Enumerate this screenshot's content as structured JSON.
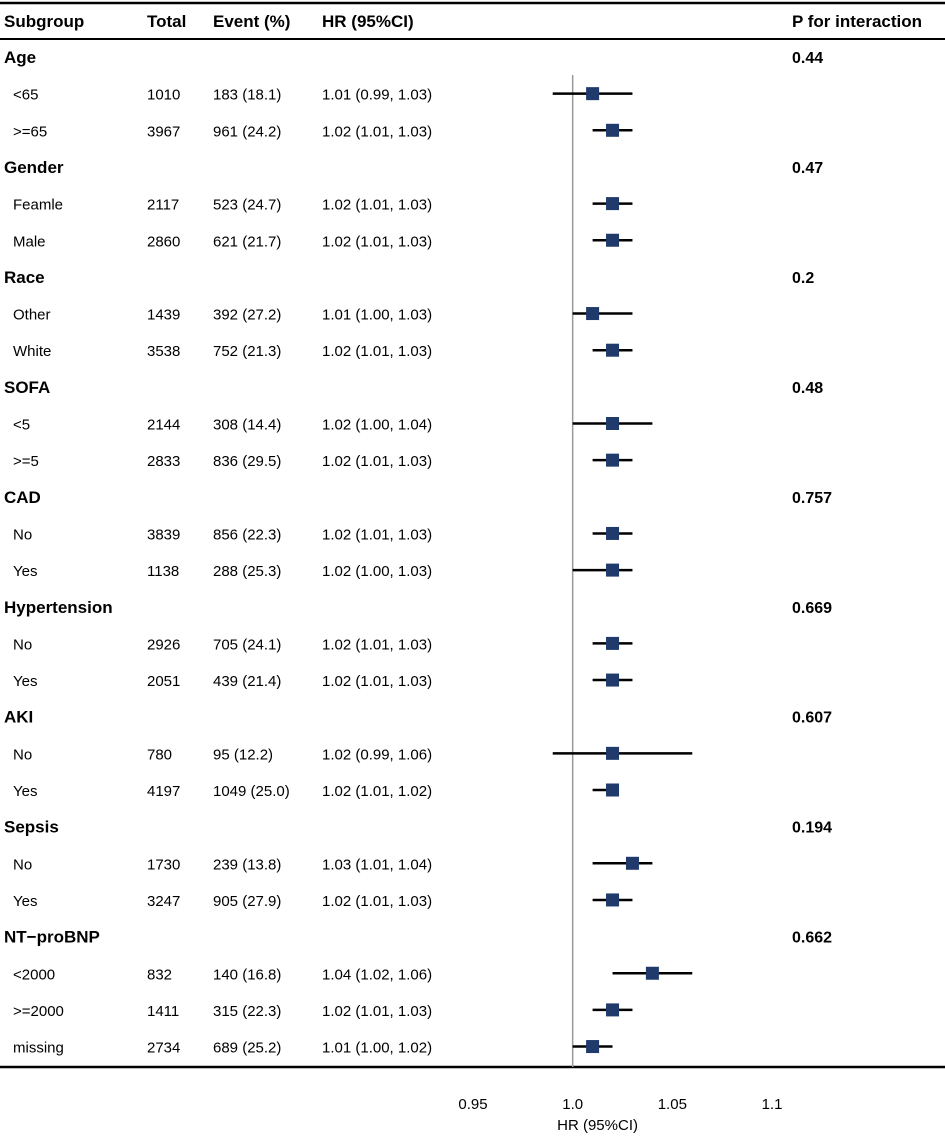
{
  "columns": {
    "subgroup": "Subgroup",
    "total": "Total",
    "event": "Event (%)",
    "hr": "HR (95%CI)",
    "p_interaction": "P for interaction"
  },
  "chart_data": {
    "type": "forest",
    "xlabel": "HR (95%CI)",
    "xlim": [
      0.95,
      1.1
    ],
    "xticks": [
      0.95,
      1.0,
      1.05,
      1.1
    ],
    "xtick_labels": [
      "0.95",
      "1.0",
      "1.05",
      "1.1"
    ],
    "reference_line": 1.0,
    "groups": [
      {
        "name": "Age",
        "p": "0.44",
        "rows": [
          {
            "label": "<65",
            "total": "1010",
            "event": "183 (18.1)",
            "hr_text": "1.01 (0.99, 1.03)",
            "hr": 1.01,
            "lo": 0.99,
            "hi": 1.03
          },
          {
            "label": ">=65",
            "total": "3967",
            "event": "961 (24.2)",
            "hr_text": "1.02 (1.01, 1.03)",
            "hr": 1.02,
            "lo": 1.01,
            "hi": 1.03
          }
        ]
      },
      {
        "name": "Gender",
        "p": "0.47",
        "rows": [
          {
            "label": "Feamle",
            "total": "2117",
            "event": "523 (24.7)",
            "hr_text": "1.02 (1.01, 1.03)",
            "hr": 1.02,
            "lo": 1.01,
            "hi": 1.03
          },
          {
            "label": "Male",
            "total": "2860",
            "event": "621 (21.7)",
            "hr_text": "1.02 (1.01, 1.03)",
            "hr": 1.02,
            "lo": 1.01,
            "hi": 1.03
          }
        ]
      },
      {
        "name": "Race",
        "p": "0.2",
        "rows": [
          {
            "label": "Other",
            "total": "1439",
            "event": "392 (27.2)",
            "hr_text": "1.01 (1.00, 1.03)",
            "hr": 1.01,
            "lo": 1.0,
            "hi": 1.03
          },
          {
            "label": "White",
            "total": "3538",
            "event": "752 (21.3)",
            "hr_text": "1.02 (1.01, 1.03)",
            "hr": 1.02,
            "lo": 1.01,
            "hi": 1.03
          }
        ]
      },
      {
        "name": "SOFA",
        "p": "0.48",
        "rows": [
          {
            "label": "<5",
            "total": "2144",
            "event": "308 (14.4)",
            "hr_text": "1.02 (1.00, 1.04)",
            "hr": 1.02,
            "lo": 1.0,
            "hi": 1.04
          },
          {
            "label": ">=5",
            "total": "2833",
            "event": "836 (29.5)",
            "hr_text": "1.02 (1.01, 1.03)",
            "hr": 1.02,
            "lo": 1.01,
            "hi": 1.03
          }
        ]
      },
      {
        "name": "CAD",
        "p": "0.757",
        "rows": [
          {
            "label": "No",
            "total": "3839",
            "event": "856 (22.3)",
            "hr_text": "1.02 (1.01, 1.03)",
            "hr": 1.02,
            "lo": 1.01,
            "hi": 1.03
          },
          {
            "label": "Yes",
            "total": "1138",
            "event": "288 (25.3)",
            "hr_text": "1.02 (1.00, 1.03)",
            "hr": 1.02,
            "lo": 1.0,
            "hi": 1.03
          }
        ]
      },
      {
        "name": "Hypertension",
        "p": "0.669",
        "rows": [
          {
            "label": "No",
            "total": "2926",
            "event": "705 (24.1)",
            "hr_text": "1.02 (1.01, 1.03)",
            "hr": 1.02,
            "lo": 1.01,
            "hi": 1.03
          },
          {
            "label": "Yes",
            "total": "2051",
            "event": "439 (21.4)",
            "hr_text": "1.02 (1.01, 1.03)",
            "hr": 1.02,
            "lo": 1.01,
            "hi": 1.03
          }
        ]
      },
      {
        "name": "AKI",
        "p": "0.607",
        "rows": [
          {
            "label": "No",
            "total": "780",
            "event": "95 (12.2)",
            "hr_text": "1.02 (0.99, 1.06)",
            "hr": 1.02,
            "lo": 0.99,
            "hi": 1.06
          },
          {
            "label": "Yes",
            "total": "4197",
            "event": "1049 (25.0)",
            "hr_text": "1.02 (1.01, 1.02)",
            "hr": 1.02,
            "lo": 1.01,
            "hi": 1.02
          }
        ]
      },
      {
        "name": "Sepsis",
        "p": "0.194",
        "rows": [
          {
            "label": "No",
            "total": "1730",
            "event": "239 (13.8)",
            "hr_text": "1.03 (1.01, 1.04)",
            "hr": 1.03,
            "lo": 1.01,
            "hi": 1.04
          },
          {
            "label": "Yes",
            "total": "3247",
            "event": "905 (27.9)",
            "hr_text": "1.02 (1.01, 1.03)",
            "hr": 1.02,
            "lo": 1.01,
            "hi": 1.03
          }
        ]
      },
      {
        "name": "NT−proBNP",
        "p": "0.662",
        "rows": [
          {
            "label": "<2000",
            "total": "832",
            "event": "140 (16.8)",
            "hr_text": "1.04 (1.02, 1.06)",
            "hr": 1.04,
            "lo": 1.02,
            "hi": 1.06
          },
          {
            "label": ">=2000",
            "total": "1411",
            "event": "315 (22.3)",
            "hr_text": "1.02 (1.01, 1.03)",
            "hr": 1.02,
            "lo": 1.01,
            "hi": 1.03
          },
          {
            "label": "missing",
            "total": "2734",
            "event": "689 (25.2)",
            "hr_text": "1.01 (1.00, 1.02)",
            "hr": 1.01,
            "lo": 1.0,
            "hi": 1.02
          }
        ]
      }
    ]
  },
  "colors": {
    "marker": "#1f3a6b",
    "ci_line": "#000000",
    "reference_line": "#9a9a9a",
    "rule": "#000000"
  }
}
